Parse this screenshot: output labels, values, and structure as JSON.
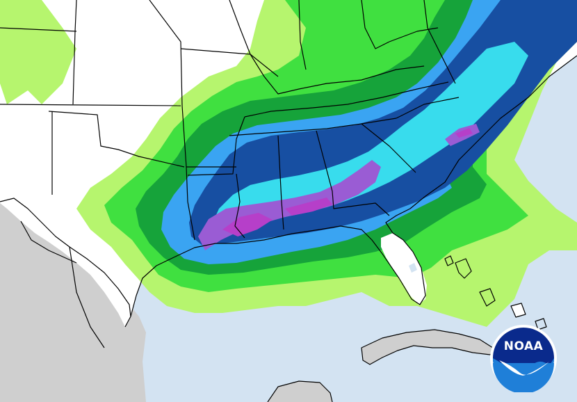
{
  "map": {
    "colors": {
      "ocean": "#d3e3f2",
      "land": "#ffffff",
      "outside_land": "#cfcfcf",
      "boundary": "#000000",
      "precip_light_green": "#b6f56e",
      "precip_bright_green": "#40e040",
      "precip_dark_green": "#16a33a",
      "precip_mid_blue": "#3aa4f2",
      "precip_cyan": "#38dced",
      "precip_dark_blue": "#174fa2",
      "precip_purple": "#9a5cd4",
      "precip_magenta": "#b63fc9"
    }
  },
  "logo": {
    "text": "NOAA",
    "colors": {
      "outer": "#ffffff",
      "sky": "#0a2a8c",
      "sea": "#1f7fd8",
      "gull": "#ffffff"
    }
  }
}
